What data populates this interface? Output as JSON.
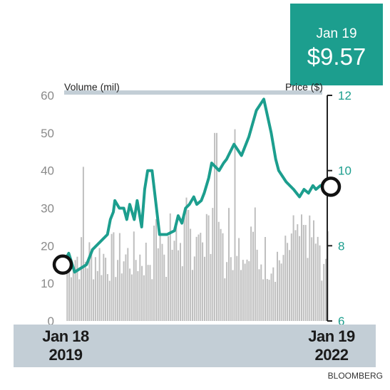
{
  "callout": {
    "date": "Jan 19",
    "price": "$9.57"
  },
  "source": "BLOOMBERG",
  "chart_data": {
    "type": "line",
    "title": "",
    "y_left_label": "Volume (mil)",
    "y_right_label": "Price ($)",
    "x_range_labels": [
      {
        "month_day": "Jan 18",
        "year": "2019"
      },
      {
        "month_day": "Jan 19",
        "year": "2022"
      }
    ],
    "y_left_ticks": [
      "60",
      "50",
      "40",
      "30",
      "20",
      "10",
      "0"
    ],
    "y_left_range": [
      0,
      60
    ],
    "y_right_ticks": [
      "12",
      "10",
      "8",
      "6"
    ],
    "y_right_range": [
      6,
      12
    ],
    "colors": {
      "price_line": "#1c9e8e",
      "volume_bars": "#bfbfbf",
      "band": "#c3ced6"
    },
    "price_series": {
      "name": "Price ($)",
      "x_months": [
        0,
        0.8,
        1.6,
        2.4,
        3.2,
        4,
        5,
        6,
        6.4,
        6.8,
        7,
        7.6,
        8.2,
        8.6,
        9,
        9.6,
        10,
        10.6,
        11,
        11.4,
        12,
        13,
        14,
        15,
        15.5,
        16,
        16.5,
        17,
        17.6,
        18,
        18.6,
        19,
        19.6,
        20,
        21,
        21.6,
        22,
        23,
        24,
        25,
        26,
        27,
        28,
        28.6,
        29,
        30,
        31,
        31.8,
        32.4,
        33,
        33.6,
        34,
        34.6,
        35,
        35.6,
        36
      ],
      "values": [
        7.5,
        7.8,
        7.3,
        7.4,
        7.5,
        7.9,
        8.1,
        8.3,
        8.7,
        8.9,
        9.2,
        9.0,
        9.0,
        8.7,
        9.1,
        8.7,
        9.2,
        8.5,
        9.5,
        10.0,
        10.0,
        8.3,
        8.3,
        8.4,
        8.8,
        8.6,
        9.0,
        9.1,
        9.3,
        9.1,
        9.2,
        9.4,
        9.8,
        10.2,
        10.0,
        10.2,
        10.3,
        10.7,
        10.4,
        10.9,
        11.6,
        11.9,
        11.0,
        10.3,
        10.0,
        9.7,
        9.5,
        9.3,
        9.5,
        9.4,
        9.6,
        9.5,
        9.6,
        9.6,
        9.5,
        9.57
      ]
    },
    "volume_series": {
      "name": "Volume (mil)",
      "note": "daily volume bars, range roughly 5-50 million",
      "peaks": [
        {
          "x_month": 2.8,
          "value": 41
        },
        {
          "x_month": 20.5,
          "value": 50
        },
        {
          "x_month": 23.1,
          "value": 51
        }
      ],
      "typical_range": [
        10,
        30
      ]
    },
    "annotations": [
      {
        "x_month": 0,
        "value": 7.5,
        "marker": "circle"
      },
      {
        "x_month": 36,
        "value": 9.57,
        "marker": "circle"
      }
    ],
    "grid": false,
    "legend": "none"
  }
}
